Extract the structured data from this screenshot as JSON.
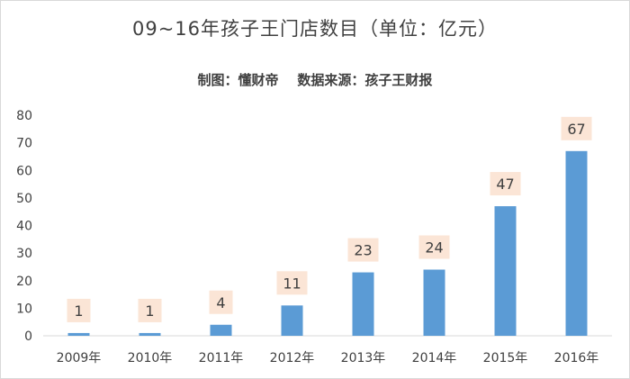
{
  "chart_data": {
    "type": "bar",
    "title": "09~16年孩子王门店数目（单位：亿元）",
    "subtitle": "制图：懂财帝    数据来源：孩子王财报",
    "categories": [
      "2009年",
      "2010年",
      "2011年",
      "2012年",
      "2013年",
      "2014年",
      "2015年",
      "2016年"
    ],
    "values": [
      1,
      1,
      4,
      11,
      23,
      24,
      47,
      67
    ],
    "data_labels": [
      "1",
      "1",
      "4",
      "11",
      "23",
      "24",
      "47",
      "67"
    ],
    "ylim": [
      0,
      80
    ],
    "yticks": [
      "0",
      "10",
      "20",
      "30",
      "40",
      "50",
      "60",
      "70",
      "80"
    ],
    "grid": false,
    "legend": "none",
    "colors": {
      "bar": "#5b9bd5",
      "label_bg": "#fbe5d6",
      "axis": "#d9d9d9",
      "text": "#404040"
    }
  }
}
